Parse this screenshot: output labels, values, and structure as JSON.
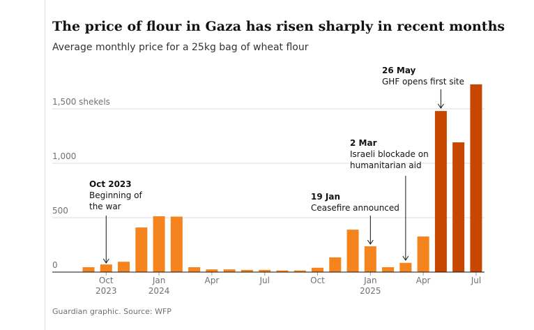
{
  "chart_data": {
    "type": "bar",
    "title": "The price of flour in Gaza has risen sharply in recent months",
    "subtitle": "Average monthly price for a 25kg bag of wheat flour",
    "source": "Guardian graphic. Source: WFP",
    "categories": [
      null,
      "Oct",
      null,
      null,
      "Jan",
      null,
      null,
      "Apr",
      null,
      null,
      "Jul",
      null,
      null,
      "Oct",
      null,
      null,
      "Jan",
      null,
      null,
      "Apr",
      null,
      null,
      "Jul"
    ],
    "years": [
      null,
      "2023",
      null,
      null,
      "2024",
      null,
      null,
      null,
      null,
      null,
      null,
      null,
      null,
      null,
      null,
      null,
      "2025",
      null,
      null,
      null,
      null,
      null,
      null
    ],
    "values": [
      45,
      70,
      95,
      410,
      513,
      510,
      45,
      25,
      25,
      20,
      20,
      15,
      15,
      40,
      135,
      390,
      237,
      45,
      85,
      327,
      1480,
      1192,
      1725
    ],
    "colors": [
      "#f5841f",
      "#f5841f",
      "#f5841f",
      "#f5841f",
      "#f5841f",
      "#f5841f",
      "#f5841f",
      "#f5841f",
      "#f5841f",
      "#f5841f",
      "#f5841f",
      "#f5841f",
      "#f5841f",
      "#f5841f",
      "#f5841f",
      "#f5841f",
      "#f5841f",
      "#f5841f",
      "#f5841f",
      "#f5841f",
      "#c74600",
      "#c74600",
      "#c74600"
    ],
    "ylim": [
      0,
      1750
    ],
    "yticks": [
      0,
      500,
      {
        "value": 1000,
        "label": "1,000"
      },
      {
        "value": 1500,
        "label": "1,500 shekels"
      }
    ],
    "grid": true,
    "annotations": [
      {
        "title": "Oct 2023",
        "lines": [
          "Beginning of",
          "the war"
        ]
      },
      {
        "title": "19 Jan",
        "lines": [
          "Ceasefire announced"
        ]
      },
      {
        "title": "2 Mar",
        "lines": [
          "Israeli blockade on",
          "humanitarian aid"
        ]
      },
      {
        "title": "26 May",
        "lines": [
          "GHF opens first site"
        ]
      }
    ]
  }
}
